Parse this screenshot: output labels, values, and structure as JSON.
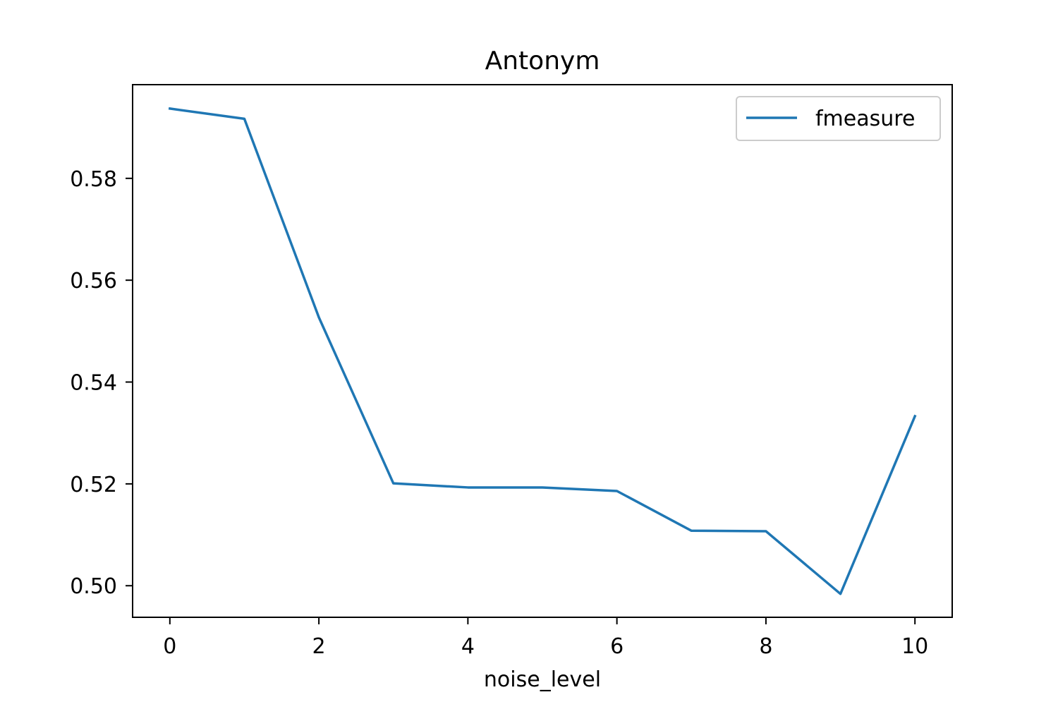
{
  "chart_data": {
    "type": "line",
    "title": "Antonym",
    "xlabel": "noise_level",
    "ylabel": "",
    "x": [
      0,
      1,
      2,
      3,
      4,
      5,
      6,
      7,
      8,
      9,
      10
    ],
    "series": [
      {
        "name": "fmeasure",
        "color": "#1f77b4",
        "values": [
          0.5937,
          0.5917,
          0.5527,
          0.5201,
          0.5193,
          0.5193,
          0.5186,
          0.5108,
          0.5107,
          0.4984,
          0.5333
        ]
      }
    ],
    "xlim": [
      -0.5,
      10.5
    ],
    "ylim": [
      0.4938,
      0.5984
    ],
    "xticks": [
      0,
      2,
      4,
      6,
      8,
      10
    ],
    "xtick_labels": [
      "0",
      "2",
      "4",
      "6",
      "8",
      "10"
    ],
    "yticks": [
      0.5,
      0.52,
      0.54,
      0.56,
      0.58
    ],
    "ytick_labels": [
      "0.50",
      "0.52",
      "0.54",
      "0.56",
      "0.58"
    ],
    "grid": false,
    "legend_position": "top-right"
  }
}
